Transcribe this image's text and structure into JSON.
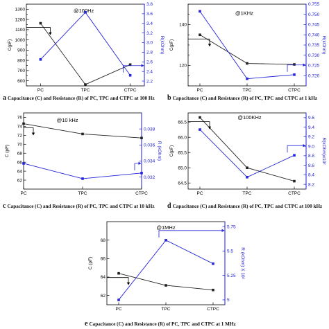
{
  "colors": {
    "c_series": "#222222",
    "r_series": "#2424d8",
    "axis": "#000000",
    "right_axis": "#1a1ad6"
  },
  "chart_data": [
    {
      "id": "a",
      "type": "line",
      "panel_letter": "a",
      "caption": "Capacitance (C) and Resistance (R) of PC, TPC and CTPC at 100 Hz",
      "frequency_label": "@100Hz",
      "categories": [
        "PC",
        "TPC",
        "CTPC"
      ],
      "ylabel": "C(pF)",
      "y2label": "R(kOhm)",
      "ylim": [
        550,
        1350
      ],
      "yticks": [
        550,
        600,
        650,
        700,
        750,
        800,
        850,
        900,
        950,
        1000,
        1050,
        1100,
        1150,
        1200,
        1250,
        1300,
        1350
      ],
      "ytick_labels": [
        "",
        "600",
        "",
        "700",
        "",
        "800",
        "",
        "900",
        "",
        "1000",
        "",
        "1100",
        "",
        "1200",
        "",
        "1300",
        ""
      ],
      "y2lim": [
        2.1,
        3.8
      ],
      "y2ticks": [
        2.2,
        2.4,
        2.6,
        2.8,
        3.0,
        3.2,
        3.4,
        3.6,
        3.8
      ],
      "y2tick_labels": [
        "2.2",
        "2.4",
        "2.6",
        "2.8",
        "3.0",
        "3.2",
        "3.4",
        "3.6",
        "3.8"
      ],
      "series": [
        {
          "axis": "left",
          "values": [
            1163,
            563,
            758
          ]
        },
        {
          "axis": "right",
          "values": [
            2.65,
            3.63,
            2.32
          ]
        }
      ]
    },
    {
      "id": "b",
      "type": "line",
      "panel_letter": "b",
      "caption": "Capacitance (C) and Resistance (R) of PC, TPC and CTPC at 1 kHz",
      "frequency_label": "@1KHz",
      "categories": [
        "PC",
        "TPC",
        "CTPC"
      ],
      "ylabel": "C(pF)",
      "y2label": "R(kOhm)",
      "ylim": [
        110,
        150
      ],
      "yticks": [
        110,
        115,
        120,
        125,
        130,
        135,
        140,
        145,
        150
      ],
      "ytick_labels": [
        "",
        "",
        "120",
        "",
        "",
        "",
        "140",
        "",
        ""
      ],
      "y2lim": [
        0.715,
        0.755
      ],
      "y2ticks": [
        0.72,
        0.725,
        0.73,
        0.735,
        0.74,
        0.745,
        0.75,
        0.755
      ],
      "y2tick_labels": [
        "0.720",
        "0.725",
        "0.730",
        "0.735",
        "0.740",
        "0.745",
        "0.750",
        "0.755"
      ],
      "series": [
        {
          "axis": "left",
          "values": [
            135,
            121,
            120.5
          ]
        },
        {
          "axis": "right",
          "values": [
            0.7515,
            0.7185,
            0.7205
          ]
        }
      ]
    },
    {
      "id": "c",
      "type": "line",
      "panel_letter": "c",
      "caption": "Capacitance (C) and Resistance (R) of PC, TPC and CTPC at 10 kHz",
      "frequency_label": "@10 kHz",
      "categories": [
        "PC",
        "TPC",
        "CTPC"
      ],
      "ylabel": "C (pF)",
      "y2label": "R (kOhm)",
      "ylim": [
        60,
        77
      ],
      "yticks": [
        60,
        62,
        64,
        66,
        68,
        70,
        72,
        74,
        76
      ],
      "ytick_labels": [
        "",
        "62",
        "64",
        "66",
        "68",
        "70",
        "72",
        "74",
        "76"
      ],
      "y2lim": [
        0.0305,
        0.04
      ],
      "y2ticks": [
        0.032,
        0.034,
        0.036,
        0.038
      ],
      "y2tick_labels": [
        "0.032",
        "0.034",
        "0.036",
        "0.038"
      ],
      "series": [
        {
          "axis": "left",
          "values": [
            74.6,
            72.3,
            71.4
          ]
        },
        {
          "axis": "right",
          "values": [
            0.0337,
            0.0318,
            0.0325
          ]
        }
      ]
    },
    {
      "id": "d",
      "type": "line",
      "panel_letter": "d",
      "caption": "Capacitance (C) and Resistance (R) of PC, TPC and CTPC at 100 kHz",
      "frequency_label": "@100KHz",
      "categories": [
        "PC",
        "TPC",
        "CTPC"
      ],
      "ylabel": "C(pF)",
      "y2label": "R(kOhm)x10²",
      "ylim": [
        64.3,
        66.8
      ],
      "yticks": [
        64.5,
        65.0,
        65.5,
        66.0,
        66.5
      ],
      "ytick_labels": [
        "64.5",
        "65.0",
        "65.5",
        "66.0",
        "66.5"
      ],
      "y2lim": [
        8.1,
        9.7
      ],
      "y2ticks": [
        8.2,
        8.4,
        8.6,
        8.8,
        9.0,
        9.2,
        9.4,
        9.6
      ],
      "y2tick_labels": [
        "8.2",
        "8.4",
        "8.6",
        "8.8",
        "9.0",
        "9.2",
        "9.4",
        "9.6"
      ],
      "series": [
        {
          "axis": "left",
          "values": [
            66.65,
            65.0,
            64.56
          ]
        },
        {
          "axis": "right",
          "values": [
            9.35,
            8.35,
            8.81
          ]
        }
      ]
    },
    {
      "id": "e",
      "type": "line",
      "panel_letter": "e",
      "caption": "Capacitance (C) and Resistance (R) of PC, TPC and CTPC at 1 MHz",
      "frequency_label": "@1MHz",
      "categories": [
        "PC",
        "TPC",
        "CTPC"
      ],
      "ylabel": "C (pF)",
      "y2label": "R (kOhm) X 10²",
      "ylim": [
        61,
        70
      ],
      "yticks": [
        62,
        64,
        66,
        68
      ],
      "ytick_labels": [
        "62",
        "64",
        "66",
        "68"
      ],
      "y2lim": [
        4.95,
        5.8
      ],
      "y2ticks": [
        5.0,
        5.25,
        5.5,
        5.75
      ],
      "y2tick_labels": [
        "5",
        "5.25",
        "5.5",
        "5.75"
      ],
      "series": [
        {
          "axis": "left",
          "values": [
            64.4,
            63.1,
            62.6
          ]
        },
        {
          "axis": "right",
          "values": [
            5.0,
            5.61,
            5.37
          ]
        }
      ]
    }
  ]
}
